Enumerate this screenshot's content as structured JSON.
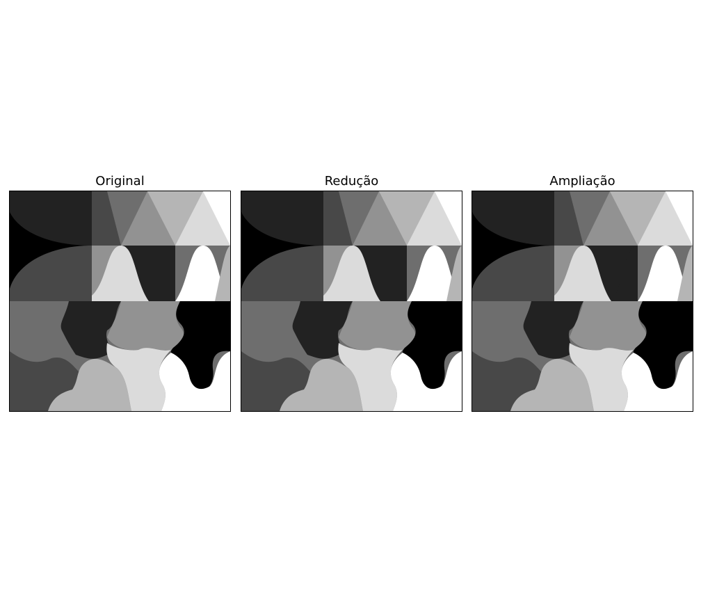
{
  "figure": {
    "panels": [
      {
        "id": "original",
        "title": "Original"
      },
      {
        "id": "reducao",
        "title": "Redução"
      },
      {
        "id": "ampliacao",
        "title": "Ampliação"
      }
    ]
  },
  "image": {
    "description_colors": {
      "black": "#000000",
      "dark": "#222222",
      "darkgray": "#484848",
      "midgray": "#6e6e6e",
      "gray": "#929292",
      "lightgray": "#b5b5b5",
      "verylight": "#dbdbdb",
      "white": "#ffffff"
    }
  }
}
